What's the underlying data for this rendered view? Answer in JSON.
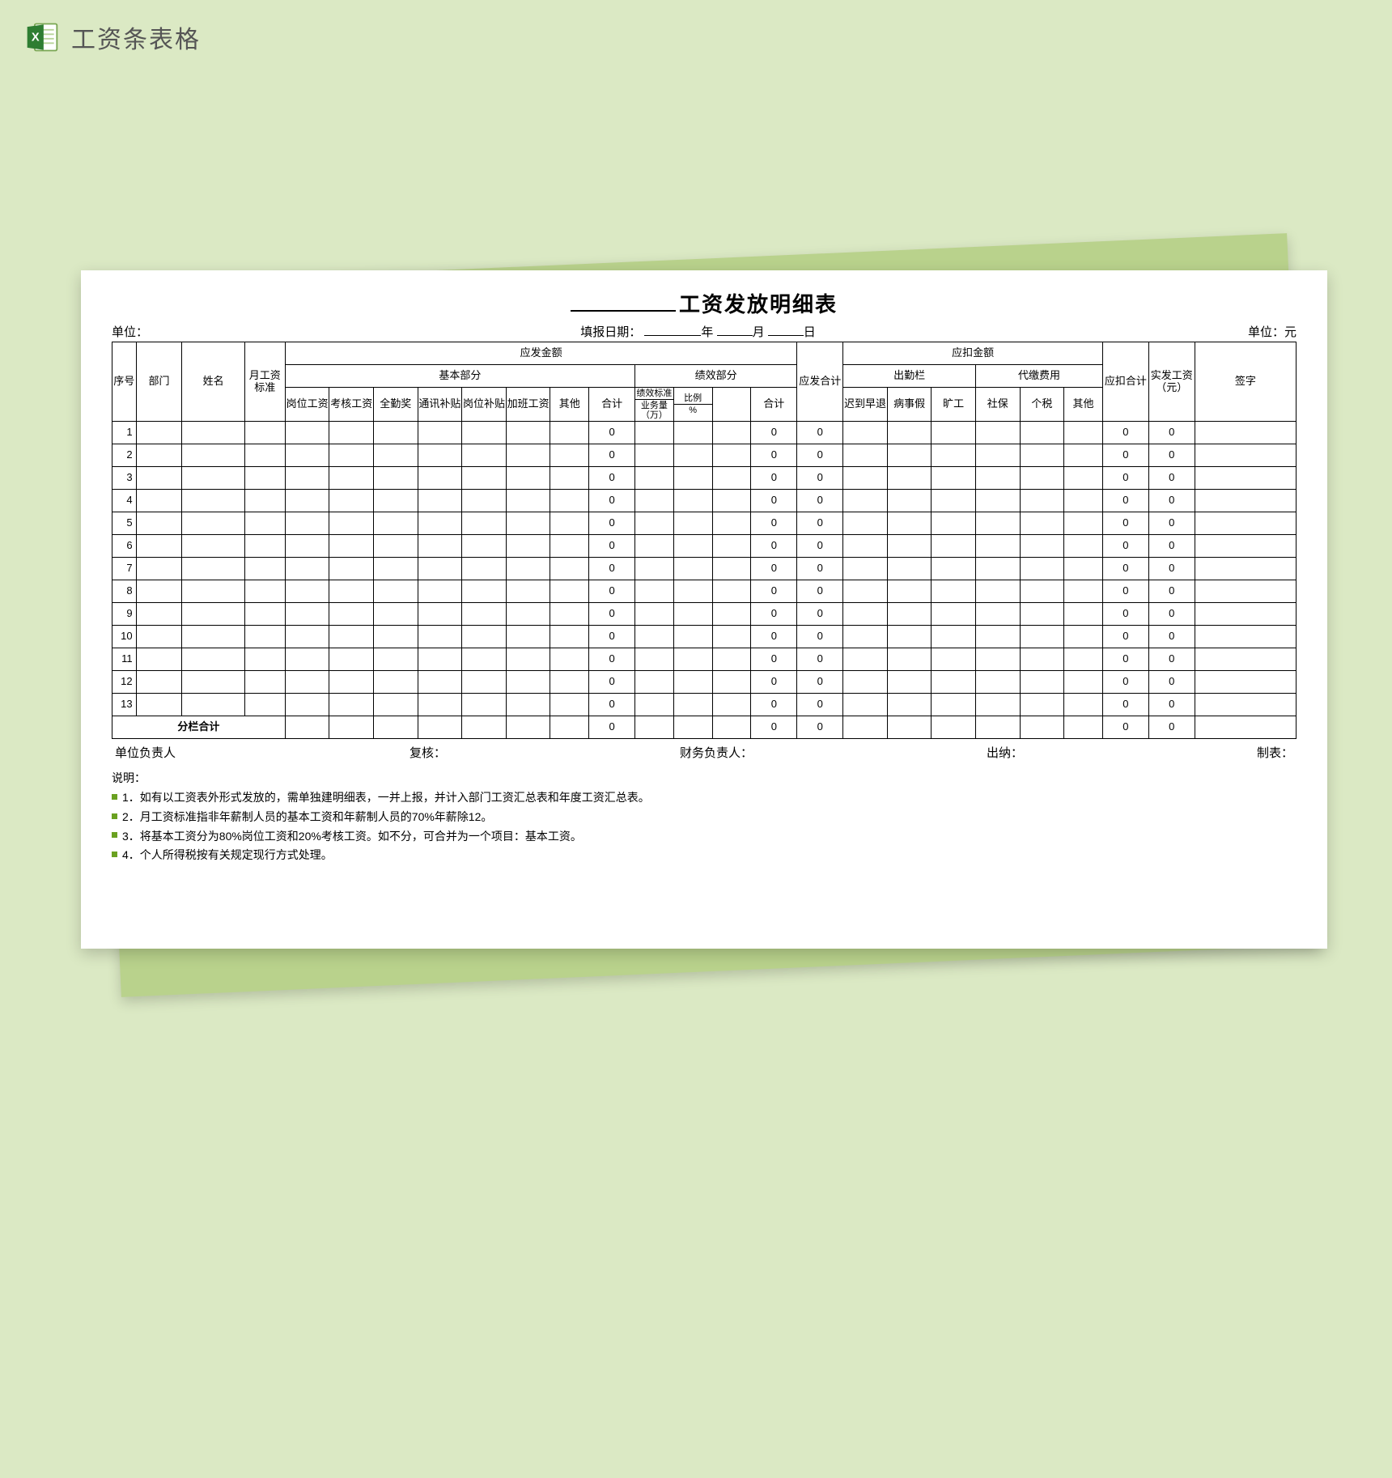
{
  "page": {
    "background_color": "#dbe9c4",
    "shadow_card_color": "#b9d28c",
    "paper_color": "#ffffff"
  },
  "header": {
    "title": "工资条表格"
  },
  "document": {
    "title_suffix": "工资发放明细表",
    "meta": {
      "unit_label_left": "单位：",
      "fill_date_label": "填报日期：",
      "year_char": "年",
      "month_char": "月",
      "day_char": "日",
      "unit_label_right": "单位：元"
    },
    "headers": {
      "seq": "序号",
      "dept": "部门",
      "name": "姓名",
      "monthly_std": "月工资标准",
      "payable_amount": "应发金额",
      "basic_part": "基本部分",
      "post_wage": "岗位工资",
      "assess_wage": "考核工资",
      "full_att_bonus": "全勤奖",
      "comm_allow": "通讯补贴",
      "post_allow": "岗位补贴",
      "ot_wage": "加班工资",
      "other1": "其他",
      "subtotal1": "合计",
      "perf_part": "绩效部分",
      "perf_std": "绩效标准",
      "biz_vol": "业务量（万）",
      "ratio_label": "比例",
      "ratio_pct": "%",
      "subtotal2": "合计",
      "payable_total": "应发合计",
      "deduct_amount": "应扣金额",
      "attendance_col": "出勤栏",
      "late_early": "迟到早退",
      "sick_leave": "病事假",
      "absent": "旷工",
      "agency_fee": "代缴费用",
      "social": "社保",
      "tax": "个税",
      "other2": "其他",
      "deduct_total": "应扣合计",
      "net_pay": "实发工资（元）",
      "sign": "签字"
    },
    "row_count": 13,
    "row_defaults": {
      "subtotal1": "0",
      "subtotal2": "0",
      "payable_total": "0",
      "deduct_total": "0",
      "net_pay": "0"
    },
    "footer_row_label": "分栏合计",
    "footer_defaults": {
      "subtotal1": "0",
      "subtotal2": "0",
      "payable_total": "0",
      "deduct_total": "0",
      "net_pay": "0"
    },
    "sign_row": {
      "unit_leader": "单位负责人",
      "reviewer": "复核：",
      "finance_leader": "财务负责人：",
      "cashier": "出纳：",
      "preparer": "制表："
    },
    "notes_label": "说明：",
    "notes": [
      "1．如有以工资表外形式发放的，需单独建明细表，一并上报，并计入部门工资汇总表和年度工资汇总表。",
      "2．月工资标准指非年薪制人员的基本工资和年薪制人员的70%年薪除12。",
      "3．将基本工资分为80%岗位工资和20%考核工资。如不分，可合并为一个项目：基本工资。",
      "4．个人所得税按有关规定现行方式处理。"
    ]
  }
}
